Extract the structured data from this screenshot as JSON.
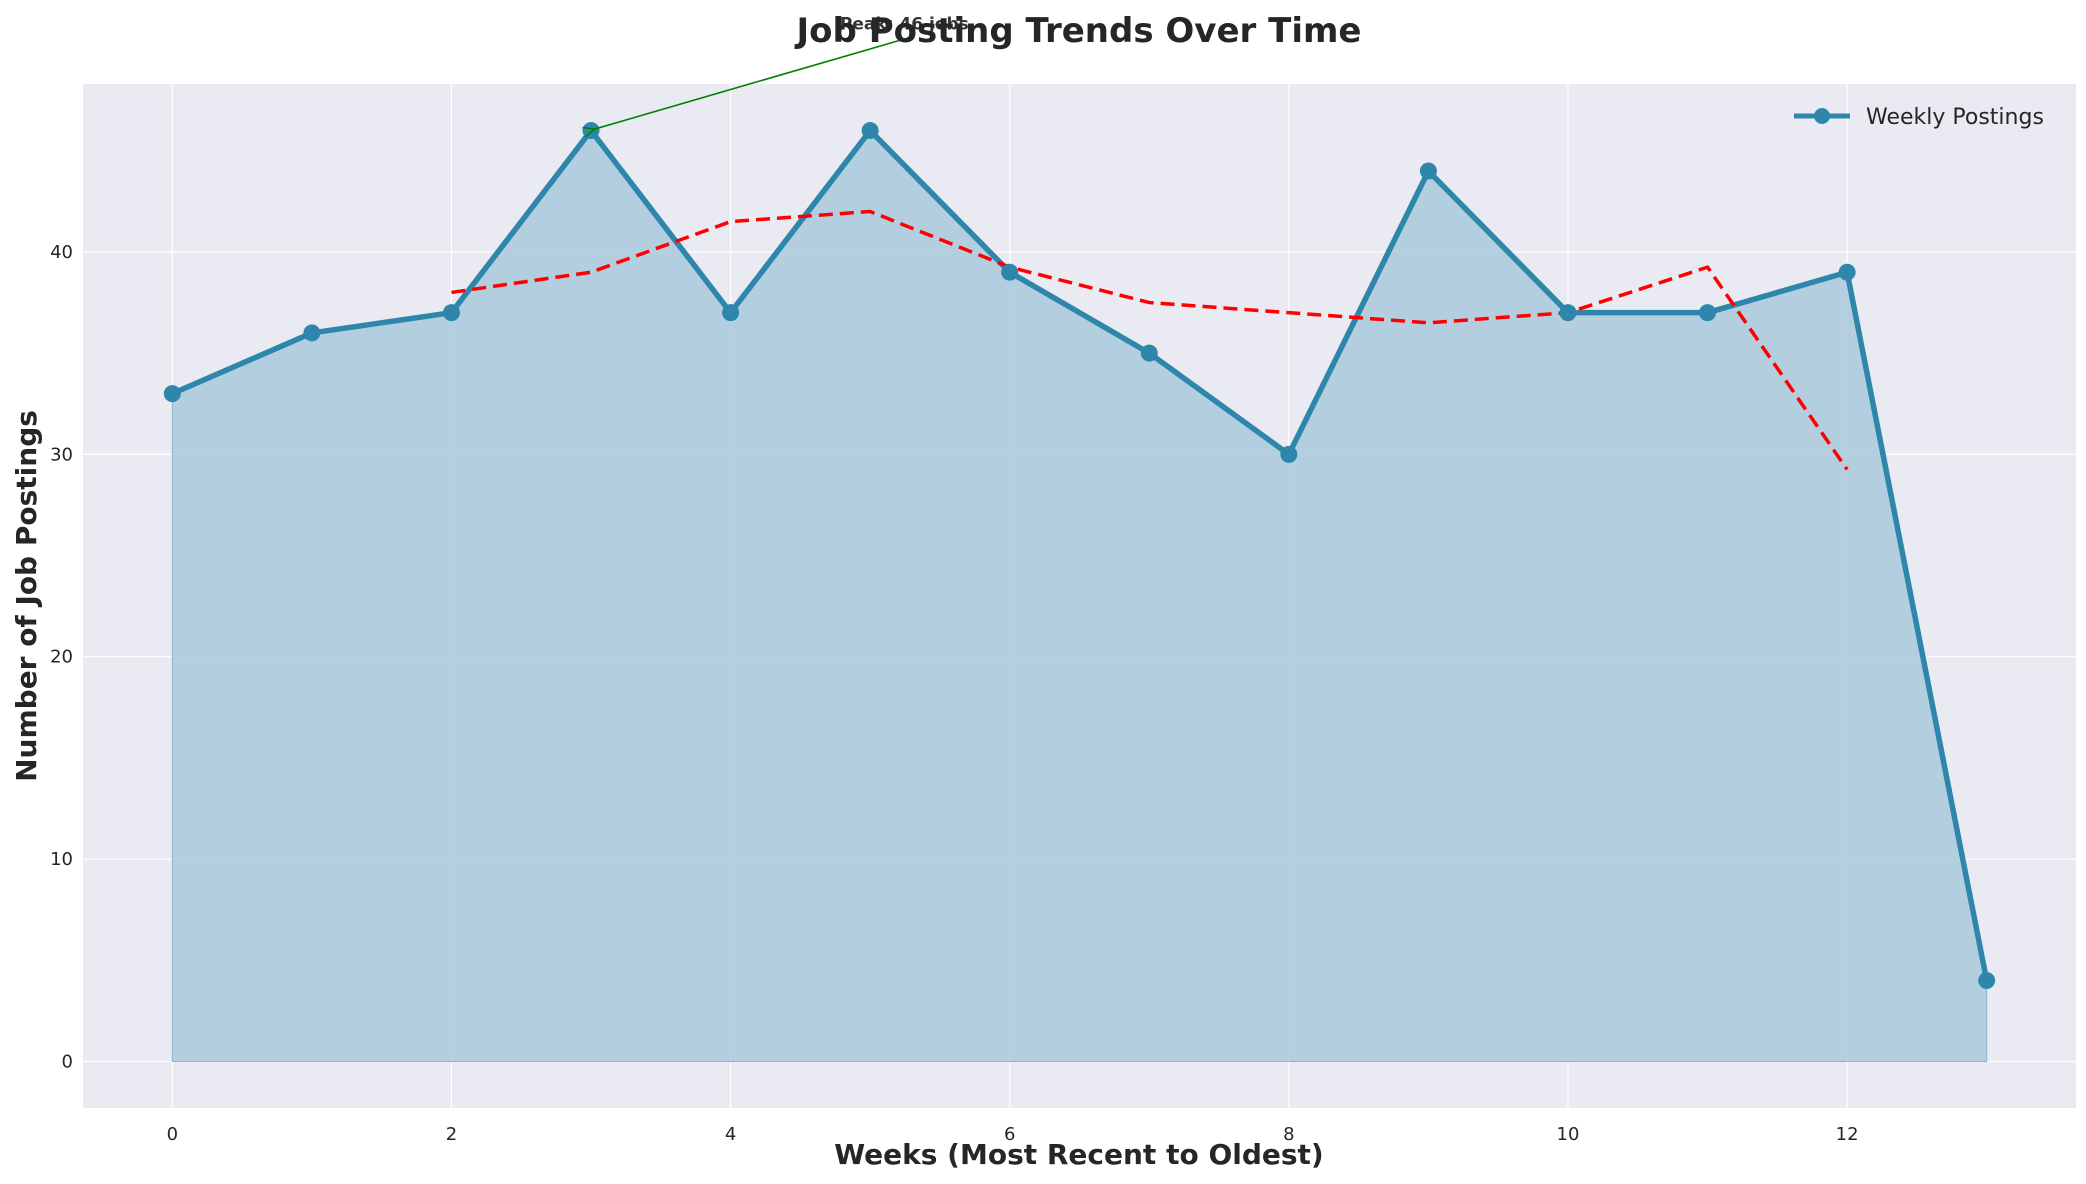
{
  "chart_data": {
    "type": "line",
    "title": "Job Posting Trends Over Time",
    "xlabel": "Weeks (Most Recent to Oldest)",
    "ylabel": "Number of Job Postings",
    "xlim": [
      -0.64,
      13.64
    ],
    "ylim": [
      -2.3,
      48.3
    ],
    "xticks": [
      0,
      2,
      4,
      6,
      8,
      10,
      12
    ],
    "yticks": [
      0,
      10,
      20,
      30,
      40
    ],
    "grid": true,
    "legend_position": "top-right",
    "x": [
      0,
      1,
      2,
      3,
      4,
      5,
      6,
      7,
      8,
      9,
      10,
      11,
      12,
      13
    ],
    "series": [
      {
        "name": "Weekly Postings",
        "style": "line-markers-area",
        "color": "#2e86ab",
        "values": [
          33,
          36,
          37,
          46,
          37,
          46,
          39,
          35,
          30,
          44,
          37,
          37,
          39,
          4
        ]
      },
      {
        "style": "dashed",
        "color": "#ff0000",
        "x": [
          2,
          3,
          4,
          5,
          6,
          7,
          8,
          9,
          10,
          11,
          12
        ],
        "values": [
          38.0,
          39.0,
          41.5,
          42.0,
          39.25,
          37.5,
          37.0,
          36.5,
          37.0,
          39.25,
          29.25
        ]
      }
    ],
    "annotations": [
      {
        "text": "Peak: 46 jobs",
        "point": [
          3,
          46
        ],
        "text_anchor": [
          5.5,
          51
        ],
        "color": "#008000"
      }
    ],
    "colors": {
      "plot_background": "#eaeaf2",
      "grid": "#ffffff",
      "area_fill": "#a9c9dc"
    }
  }
}
